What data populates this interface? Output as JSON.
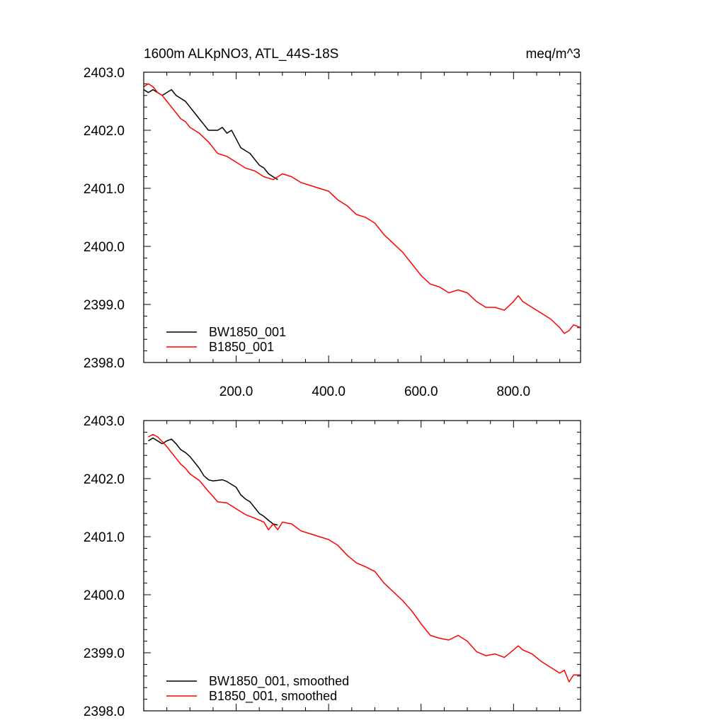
{
  "colors": {
    "black": "#000000",
    "red": "#ff0000"
  },
  "chart_data": [
    {
      "type": "line",
      "title": "1600m ALKpNO3, ATL_44S-18S",
      "units": "meq/m^3",
      "xlim": [
        0,
        945
      ],
      "ylim": [
        2398.0,
        2403.0
      ],
      "yticks": [
        "2403.0",
        "2402.0",
        "2401.0",
        "2400.0",
        "2399.0",
        "2398.0"
      ],
      "xticks": [
        "200.0",
        "400.0",
        "600.0",
        "800.0"
      ],
      "legend_position": "bottom-left",
      "series": [
        {
          "name": "BW1850_001",
          "color": "#000000",
          "x": [
            0,
            10,
            20,
            30,
            40,
            50,
            60,
            70,
            80,
            90,
            100,
            110,
            120,
            130,
            140,
            150,
            160,
            170,
            180,
            190,
            200,
            210,
            220,
            230,
            240,
            250,
            260,
            270,
            280,
            290
          ],
          "y": [
            2402.7,
            2402.65,
            2402.7,
            2402.65,
            2402.6,
            2402.65,
            2402.7,
            2402.6,
            2402.55,
            2402.5,
            2402.4,
            2402.3,
            2402.2,
            2402.1,
            2402.0,
            2402.0,
            2402.0,
            2402.05,
            2401.95,
            2402.0,
            2401.85,
            2401.7,
            2401.65,
            2401.6,
            2401.5,
            2401.4,
            2401.35,
            2401.25,
            2401.2,
            2401.15
          ]
        },
        {
          "name": "B1850_001",
          "color": "#ff0000",
          "x": [
            0,
            10,
            20,
            30,
            40,
            50,
            60,
            70,
            80,
            90,
            100,
            120,
            140,
            160,
            180,
            200,
            220,
            240,
            260,
            280,
            300,
            320,
            340,
            360,
            380,
            400,
            420,
            440,
            460,
            480,
            500,
            520,
            540,
            560,
            580,
            600,
            620,
            640,
            660,
            680,
            700,
            720,
            740,
            760,
            780,
            800,
            810,
            820,
            840,
            860,
            880,
            900,
            910,
            920,
            930,
            945
          ],
          "y": [
            2402.75,
            2402.8,
            2402.75,
            2402.65,
            2402.6,
            2402.5,
            2402.4,
            2402.3,
            2402.2,
            2402.15,
            2402.05,
            2401.95,
            2401.8,
            2401.6,
            2401.55,
            2401.45,
            2401.35,
            2401.3,
            2401.2,
            2401.15,
            2401.25,
            2401.2,
            2401.1,
            2401.05,
            2401.0,
            2400.95,
            2400.8,
            2400.7,
            2400.55,
            2400.5,
            2400.4,
            2400.2,
            2400.05,
            2399.9,
            2399.7,
            2399.5,
            2399.35,
            2399.3,
            2399.2,
            2399.25,
            2399.2,
            2399.05,
            2398.95,
            2398.95,
            2398.9,
            2399.05,
            2399.15,
            2399.05,
            2398.95,
            2398.85,
            2398.75,
            2398.6,
            2398.5,
            2398.55,
            2398.65,
            2398.6
          ]
        }
      ]
    },
    {
      "type": "line",
      "xlim": [
        0,
        945
      ],
      "ylim": [
        2398.0,
        2403.0
      ],
      "yticks": [
        "2403.0",
        "2402.0",
        "2401.0",
        "2400.0",
        "2399.0",
        "2398.0"
      ],
      "xticks": [],
      "legend_position": "bottom-left",
      "series": [
        {
          "name": "BW1850_001, smoothed",
          "color": "#000000",
          "x": [
            10,
            20,
            30,
            40,
            50,
            60,
            70,
            80,
            90,
            100,
            110,
            120,
            130,
            140,
            150,
            160,
            170,
            180,
            190,
            200,
            210,
            220,
            230,
            240,
            250,
            260,
            270,
            280,
            290
          ],
          "y": [
            2402.65,
            2402.7,
            2402.65,
            2402.6,
            2402.65,
            2402.68,
            2402.6,
            2402.5,
            2402.45,
            2402.38,
            2402.28,
            2402.18,
            2402.05,
            2401.98,
            2401.96,
            2401.97,
            2401.98,
            2401.95,
            2401.9,
            2401.85,
            2401.72,
            2401.65,
            2401.6,
            2401.5,
            2401.4,
            2401.35,
            2401.28,
            2401.22,
            2401.2
          ]
        },
        {
          "name": "B1850_001, smoothed",
          "color": "#ff0000",
          "x": [
            10,
            20,
            30,
            40,
            50,
            60,
            70,
            80,
            90,
            100,
            120,
            140,
            160,
            180,
            200,
            220,
            240,
            260,
            270,
            280,
            290,
            300,
            320,
            340,
            360,
            380,
            400,
            420,
            440,
            460,
            480,
            500,
            520,
            540,
            560,
            580,
            600,
            620,
            640,
            660,
            680,
            700,
            720,
            740,
            760,
            780,
            800,
            810,
            820,
            840,
            860,
            880,
            900,
            910,
            920,
            930,
            945
          ],
          "y": [
            2402.72,
            2402.76,
            2402.72,
            2402.64,
            2402.55,
            2402.45,
            2402.35,
            2402.25,
            2402.18,
            2402.08,
            2401.97,
            2401.78,
            2401.6,
            2401.58,
            2401.48,
            2401.38,
            2401.32,
            2401.25,
            2401.12,
            2401.22,
            2401.12,
            2401.25,
            2401.22,
            2401.1,
            2401.05,
            2401.0,
            2400.95,
            2400.85,
            2400.68,
            2400.55,
            2400.48,
            2400.4,
            2400.2,
            2400.05,
            2399.9,
            2399.72,
            2399.5,
            2399.3,
            2399.25,
            2399.22,
            2399.3,
            2399.2,
            2399.02,
            2398.95,
            2398.98,
            2398.92,
            2399.05,
            2399.12,
            2399.05,
            2398.98,
            2398.85,
            2398.75,
            2398.65,
            2398.7,
            2398.5,
            2398.62,
            2398.62
          ]
        }
      ]
    }
  ]
}
